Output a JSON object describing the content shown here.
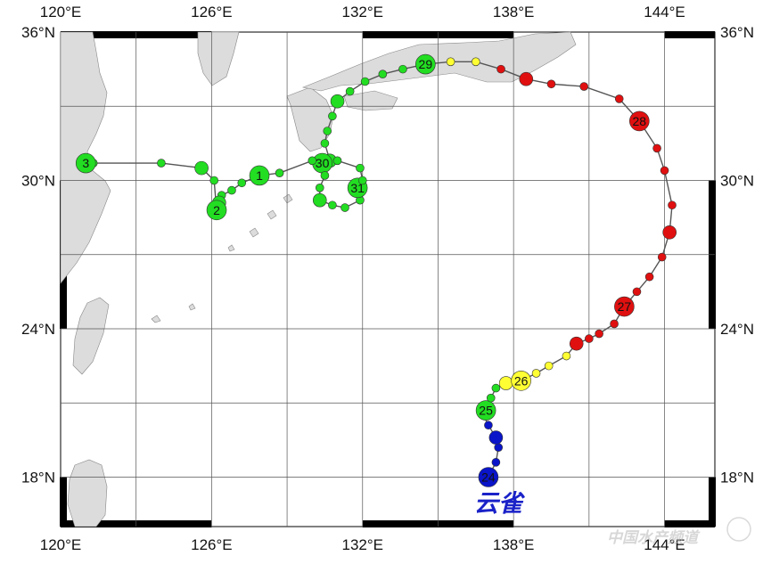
{
  "map": {
    "lon_range": [
      120,
      146
    ],
    "lat_range": [
      16,
      36
    ],
    "lon_ticks": [
      {
        "value": 120,
        "label": "120°E"
      },
      {
        "value": 126,
        "label": "126°E"
      },
      {
        "value": 132,
        "label": "132°E"
      },
      {
        "value": 138,
        "label": "138°E"
      },
      {
        "value": 144,
        "label": "144°E"
      }
    ],
    "lat_ticks": [
      {
        "value": 36,
        "label": "36°N"
      },
      {
        "value": 30,
        "label": "30°N"
      },
      {
        "value": 24,
        "label": "24°N"
      },
      {
        "value": 18,
        "label": "18°N"
      }
    ],
    "grid_lons": [
      123,
      126,
      129,
      132,
      135,
      138,
      141,
      144
    ],
    "grid_lats": [
      33,
      30,
      27,
      24,
      21,
      18
    ],
    "colors": {
      "blue": "#0a14c8",
      "green": "#22dd22",
      "yellow": "#ffff33",
      "red": "#e01010",
      "land": "#dcdcdc",
      "track": "#555555",
      "storm_name": "#1a22c8"
    }
  },
  "storm": {
    "name": "云雀",
    "track": [
      {
        "lon": 137.0,
        "lat": 18.0,
        "size": "big",
        "color": "blue",
        "label": "24"
      },
      {
        "lon": 137.3,
        "lat": 18.6,
        "size": "small",
        "color": "blue"
      },
      {
        "lon": 137.4,
        "lat": 19.2,
        "size": "small",
        "color": "blue"
      },
      {
        "lon": 137.3,
        "lat": 19.6,
        "size": "med",
        "color": "blue"
      },
      {
        "lon": 137.0,
        "lat": 20.1,
        "size": "small",
        "color": "blue"
      },
      {
        "lon": 136.8,
        "lat": 20.5,
        "size": "small",
        "color": "green"
      },
      {
        "lon": 136.9,
        "lat": 20.7,
        "size": "big",
        "color": "green",
        "label": "25"
      },
      {
        "lon": 137.1,
        "lat": 21.2,
        "size": "small",
        "color": "green"
      },
      {
        "lon": 137.3,
        "lat": 21.6,
        "size": "small",
        "color": "green"
      },
      {
        "lon": 137.7,
        "lat": 21.8,
        "size": "med",
        "color": "yellow"
      },
      {
        "lon": 138.3,
        "lat": 21.9,
        "size": "big",
        "color": "yellow",
        "label": "26"
      },
      {
        "lon": 138.9,
        "lat": 22.2,
        "size": "small",
        "color": "yellow"
      },
      {
        "lon": 139.4,
        "lat": 22.5,
        "size": "small",
        "color": "yellow"
      },
      {
        "lon": 140.1,
        "lat": 22.9,
        "size": "small",
        "color": "yellow"
      },
      {
        "lon": 140.5,
        "lat": 23.4,
        "size": "med",
        "color": "red"
      },
      {
        "lon": 141.0,
        "lat": 23.6,
        "size": "small",
        "color": "red"
      },
      {
        "lon": 141.4,
        "lat": 23.8,
        "size": "small",
        "color": "red"
      },
      {
        "lon": 142.0,
        "lat": 24.2,
        "size": "small",
        "color": "red"
      },
      {
        "lon": 142.4,
        "lat": 24.9,
        "size": "big",
        "color": "red",
        "label": "27"
      },
      {
        "lon": 142.9,
        "lat": 25.5,
        "size": "small",
        "color": "red"
      },
      {
        "lon": 143.4,
        "lat": 26.1,
        "size": "small",
        "color": "red"
      },
      {
        "lon": 143.9,
        "lat": 26.9,
        "size": "small",
        "color": "red"
      },
      {
        "lon": 144.2,
        "lat": 27.9,
        "size": "med",
        "color": "red"
      },
      {
        "lon": 144.3,
        "lat": 29.0,
        "size": "small",
        "color": "red"
      },
      {
        "lon": 144.0,
        "lat": 30.4,
        "size": "small",
        "color": "red"
      },
      {
        "lon": 143.7,
        "lat": 31.3,
        "size": "small",
        "color": "red"
      },
      {
        "lon": 143.0,
        "lat": 32.4,
        "size": "big",
        "color": "red",
        "label": "28"
      },
      {
        "lon": 142.2,
        "lat": 33.3,
        "size": "small",
        "color": "red"
      },
      {
        "lon": 140.8,
        "lat": 33.8,
        "size": "small",
        "color": "red"
      },
      {
        "lon": 139.5,
        "lat": 33.9,
        "size": "small",
        "color": "red"
      },
      {
        "lon": 138.5,
        "lat": 34.1,
        "size": "med",
        "color": "red"
      },
      {
        "lon": 137.5,
        "lat": 34.5,
        "size": "small",
        "color": "red"
      },
      {
        "lon": 136.5,
        "lat": 34.8,
        "size": "small",
        "color": "yellow"
      },
      {
        "lon": 135.5,
        "lat": 34.8,
        "size": "small",
        "color": "yellow"
      },
      {
        "lon": 134.5,
        "lat": 34.7,
        "size": "big",
        "color": "green",
        "label": "29"
      },
      {
        "lon": 133.6,
        "lat": 34.5,
        "size": "small",
        "color": "green"
      },
      {
        "lon": 132.8,
        "lat": 34.3,
        "size": "small",
        "color": "green"
      },
      {
        "lon": 132.1,
        "lat": 34.0,
        "size": "small",
        "color": "green"
      },
      {
        "lon": 131.5,
        "lat": 33.6,
        "size": "small",
        "color": "green"
      },
      {
        "lon": 131.0,
        "lat": 33.2,
        "size": "med",
        "color": "green"
      },
      {
        "lon": 130.8,
        "lat": 32.6,
        "size": "small",
        "color": "green"
      },
      {
        "lon": 130.6,
        "lat": 32.0,
        "size": "small",
        "color": "green"
      },
      {
        "lon": 130.5,
        "lat": 31.5,
        "size": "small",
        "color": "green"
      },
      {
        "lon": 130.7,
        "lat": 30.8,
        "size": "med",
        "color": "green"
      },
      {
        "lon": 130.4,
        "lat": 30.7,
        "size": "big",
        "color": "green",
        "label": "30"
      },
      {
        "lon": 130.5,
        "lat": 30.2,
        "size": "small",
        "color": "green"
      },
      {
        "lon": 130.3,
        "lat": 29.7,
        "size": "small",
        "color": "green"
      },
      {
        "lon": 130.3,
        "lat": 29.2,
        "size": "med",
        "color": "green"
      },
      {
        "lon": 130.8,
        "lat": 29.0,
        "size": "small",
        "color": "green"
      },
      {
        "lon": 131.3,
        "lat": 28.9,
        "size": "small",
        "color": "green"
      },
      {
        "lon": 131.9,
        "lat": 29.2,
        "size": "small",
        "color": "green"
      },
      {
        "lon": 131.8,
        "lat": 29.7,
        "size": "big",
        "color": "green",
        "label": "31"
      },
      {
        "lon": 132.0,
        "lat": 30.0,
        "size": "small",
        "color": "green"
      },
      {
        "lon": 131.9,
        "lat": 30.5,
        "size": "small",
        "color": "green"
      },
      {
        "lon": 131.0,
        "lat": 30.8,
        "size": "small",
        "color": "green"
      },
      {
        "lon": 130.0,
        "lat": 30.8,
        "size": "small",
        "color": "green"
      },
      {
        "lon": 128.7,
        "lat": 30.3,
        "size": "small",
        "color": "green"
      },
      {
        "lon": 127.9,
        "lat": 30.2,
        "size": "big",
        "color": "green",
        "label": "1"
      },
      {
        "lon": 127.2,
        "lat": 29.9,
        "size": "small",
        "color": "green"
      },
      {
        "lon": 126.8,
        "lat": 29.6,
        "size": "small",
        "color": "green"
      },
      {
        "lon": 126.4,
        "lat": 29.4,
        "size": "small",
        "color": "green"
      },
      {
        "lon": 126.3,
        "lat": 29.1,
        "size": "med",
        "color": "green"
      },
      {
        "lon": 126.2,
        "lat": 28.8,
        "size": "big",
        "color": "green",
        "label": "2"
      },
      {
        "lon": 126.1,
        "lat": 30.0,
        "size": "small",
        "color": "green"
      },
      {
        "lon": 125.6,
        "lat": 30.5,
        "size": "med",
        "color": "green"
      },
      {
        "lon": 124.0,
        "lat": 30.7,
        "size": "small",
        "color": "green"
      },
      {
        "lon": 121.3,
        "lat": 30.7,
        "size": "small",
        "color": "green"
      },
      {
        "lon": 121.0,
        "lat": 30.7,
        "size": "big",
        "color": "green",
        "label": "3"
      }
    ]
  },
  "watermark": {
    "text": "中国水产频道"
  }
}
